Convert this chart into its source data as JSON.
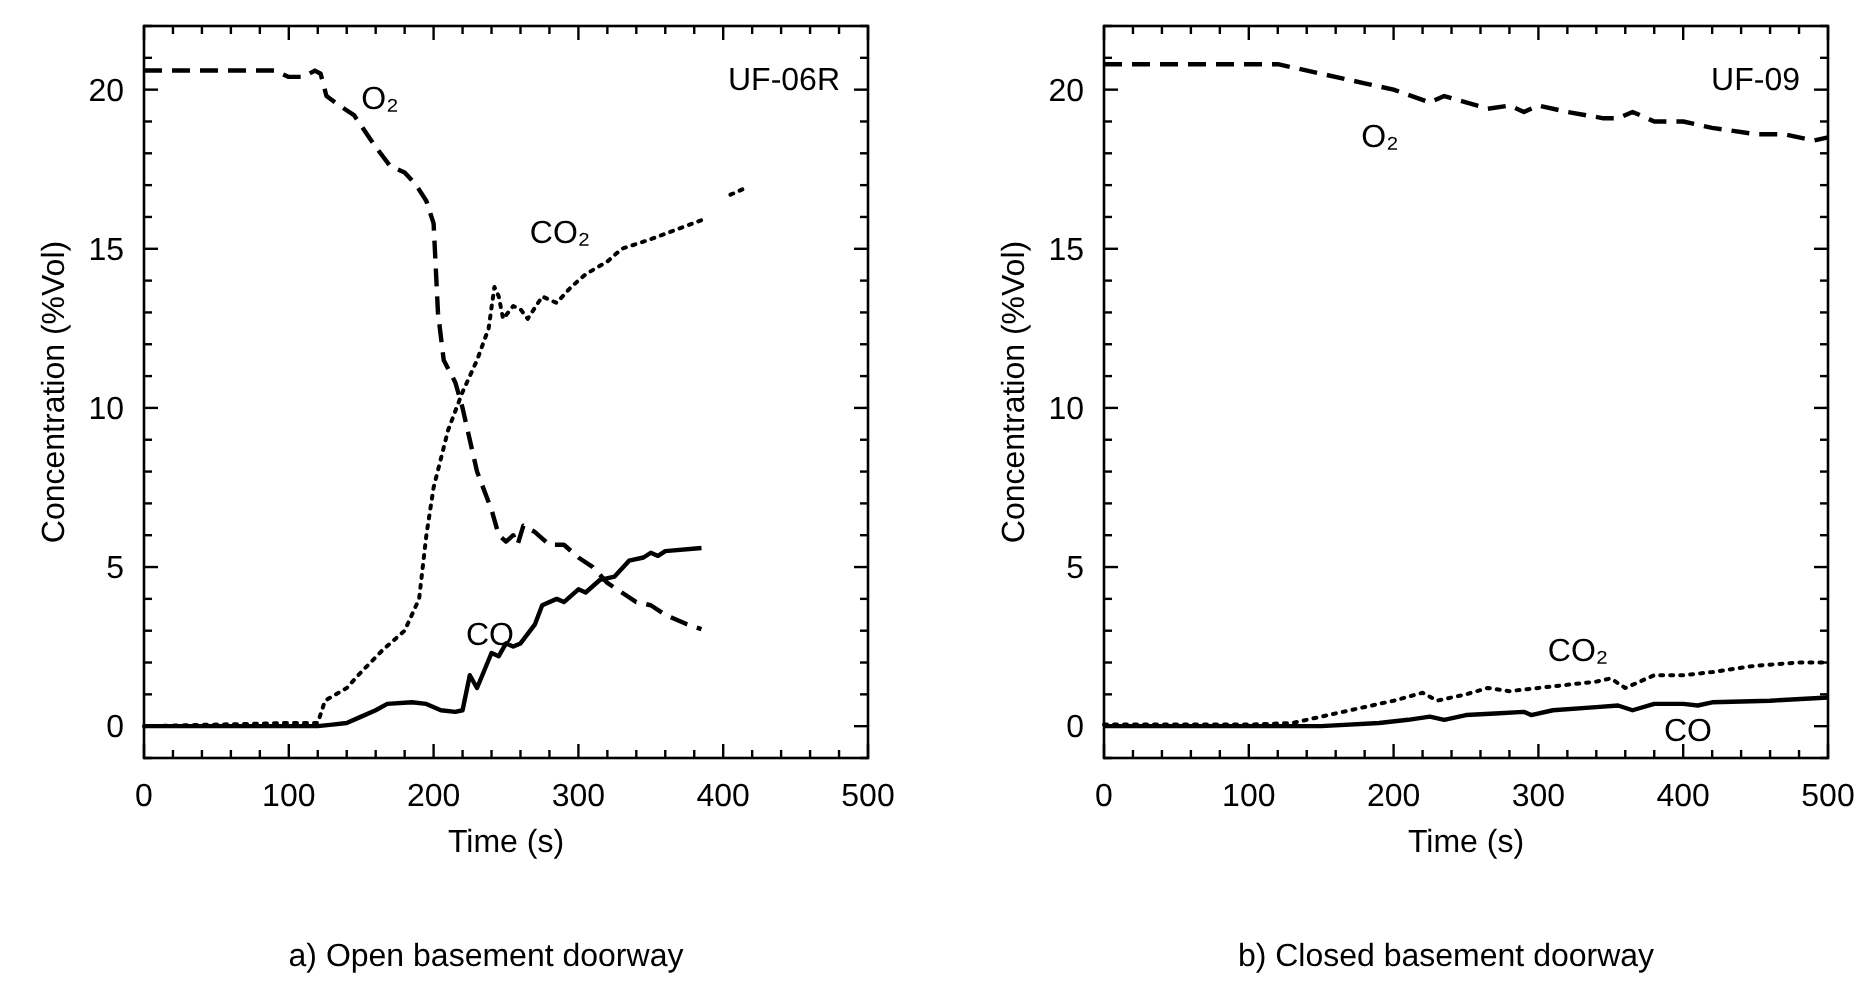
{
  "chart_data": [
    {
      "type": "line",
      "title": "a) Open basement doorway",
      "xlabel": "Time (s)",
      "ylabel": "Concentration (%Vol)",
      "xlim": [
        0,
        500
      ],
      "ylim": [
        -1,
        22
      ],
      "xticks": [
        0,
        {
          "value": 20,
          "label": null
        },
        {
          "value": 40,
          "label": null
        },
        {
          "value": 60,
          "label": null
        },
        {
          "value": 80,
          "label": null
        },
        100,
        {
          "value": 120,
          "label": null
        },
        {
          "value": 140,
          "label": null
        },
        {
          "value": 160,
          "label": null
        },
        {
          "value": 180,
          "label": null
        },
        200,
        {
          "value": 220,
          "label": null
        },
        {
          "value": 240,
          "label": null
        },
        {
          "value": 260,
          "label": null
        },
        {
          "value": 280,
          "label": null
        },
        300,
        {
          "value": 320,
          "label": null
        },
        {
          "value": 340,
          "label": null
        },
        {
          "value": 360,
          "label": null
        },
        {
          "value": 380,
          "label": null
        },
        400,
        {
          "value": 420,
          "label": null
        },
        {
          "value": 440,
          "label": null
        },
        {
          "value": 460,
          "label": null
        },
        {
          "value": 480,
          "label": null
        },
        500
      ],
      "yticks": [
        {
          "value": -1,
          "label": null
        },
        0,
        {
          "value": 1,
          "label": null
        },
        {
          "value": 2,
          "label": null
        },
        {
          "value": 3,
          "label": null
        },
        {
          "value": 4,
          "label": null
        },
        5,
        {
          "value": 6,
          "label": null
        },
        {
          "value": 7,
          "label": null
        },
        {
          "value": 8,
          "label": null
        },
        {
          "value": 9,
          "label": null
        },
        10,
        {
          "value": 11,
          "label": null
        },
        {
          "value": 12,
          "label": null
        },
        {
          "value": 13,
          "label": null
        },
        {
          "value": 14,
          "label": null
        },
        15,
        {
          "value": 16,
          "label": null
        },
        {
          "value": 17,
          "label": null
        },
        {
          "value": 18,
          "label": null
        },
        {
          "value": 19,
          "label": null
        },
        20,
        {
          "value": 21,
          "label": null
        },
        {
          "value": 22,
          "label": null
        }
      ],
      "grid": false,
      "legend": false,
      "series": [
        {
          "name": "O₂",
          "color": "#000000",
          "line_style": "dashed",
          "x": [
            0,
            90,
            100,
            110,
            118,
            122,
            126,
            135,
            145,
            160,
            170,
            180,
            188,
            195,
            200,
            203,
            207,
            215,
            220,
            230,
            240,
            245,
            250,
            255,
            258,
            262,
            270,
            280,
            290,
            300,
            310,
            320,
            330,
            340,
            350,
            360,
            375,
            385
          ],
          "values": [
            20.6,
            20.6,
            20.4,
            20.4,
            20.6,
            20.5,
            19.8,
            19.5,
            19.2,
            18.2,
            17.6,
            17.4,
            17.0,
            16.5,
            15.8,
            13,
            11.5,
            10.8,
            10,
            8,
            6.8,
            6.0,
            5.8,
            6.0,
            5.7,
            6.3,
            6.1,
            5.7,
            5.7,
            5.3,
            5.0,
            4.5,
            4.2,
            3.9,
            3.8,
            3.5,
            3.2,
            3.05
          ]
        },
        {
          "name": "CO₂",
          "color": "#000000",
          "line_style": "dotted",
          "x": [
            0,
            100,
            120,
            125,
            140,
            150,
            165,
            180,
            190,
            195,
            200,
            210,
            220,
            230,
            238,
            242,
            245,
            248,
            255,
            260,
            265,
            275,
            285,
            295,
            305,
            320,
            330,
            350,
            385,
            395,
            405,
            415
          ],
          "values": [
            0,
            0.1,
            0.1,
            0.8,
            1.2,
            1.7,
            2.4,
            3,
            4,
            6,
            7.5,
            9.3,
            10.5,
            11.5,
            12.5,
            13.8,
            13.5,
            12.8,
            13.2,
            13.1,
            12.8,
            13.5,
            13.3,
            13.8,
            14.2,
            14.6,
            15.0,
            15.3,
            15.9,
            null,
            16.7,
            16.9
          ]
        },
        {
          "name": "CO",
          "color": "#000000",
          "line_style": "solid",
          "x": [
            0,
            120,
            130,
            140,
            150,
            160,
            168,
            185,
            195,
            205,
            215,
            220,
            225,
            230,
            240,
            245,
            250,
            255,
            260,
            270,
            275,
            285,
            290,
            300,
            305,
            315,
            325,
            335,
            345,
            350,
            355,
            360,
            385
          ],
          "values": [
            0,
            0,
            0.05,
            0.1,
            0.3,
            0.5,
            0.7,
            0.75,
            0.7,
            0.5,
            0.45,
            0.5,
            1.6,
            1.2,
            2.3,
            2.2,
            2.6,
            2.5,
            2.6,
            3.2,
            3.8,
            4.0,
            3.9,
            4.3,
            4.2,
            4.6,
            4.7,
            5.2,
            5.3,
            5.45,
            5.35,
            5.5,
            5.6
          ]
        }
      ],
      "annotations": [
        "UF-06R"
      ]
    },
    {
      "type": "line",
      "title": "b) Closed basement doorway",
      "xlabel": "Time (s)",
      "ylabel": "Concentration (%Vol)",
      "xlim": [
        0,
        500
      ],
      "ylim": [
        -1,
        22
      ],
      "xticks": [
        0,
        {
          "value": 20,
          "label": null
        },
        {
          "value": 40,
          "label": null
        },
        {
          "value": 60,
          "label": null
        },
        {
          "value": 80,
          "label": null
        },
        100,
        {
          "value": 120,
          "label": null
        },
        {
          "value": 140,
          "label": null
        },
        {
          "value": 160,
          "label": null
        },
        {
          "value": 180,
          "label": null
        },
        200,
        {
          "value": 220,
          "label": null
        },
        {
          "value": 240,
          "label": null
        },
        {
          "value": 260,
          "label": null
        },
        {
          "value": 280,
          "label": null
        },
        300,
        {
          "value": 320,
          "label": null
        },
        {
          "value": 340,
          "label": null
        },
        {
          "value": 360,
          "label": null
        },
        {
          "value": 380,
          "label": null
        },
        400,
        {
          "value": 420,
          "label": null
        },
        {
          "value": 440,
          "label": null
        },
        {
          "value": 460,
          "label": null
        },
        {
          "value": 480,
          "label": null
        },
        500
      ],
      "yticks": [
        {
          "value": -1,
          "label": null
        },
        0,
        {
          "value": 1,
          "label": null
        },
        {
          "value": 2,
          "label": null
        },
        {
          "value": 3,
          "label": null
        },
        {
          "value": 4,
          "label": null
        },
        5,
        {
          "value": 6,
          "label": null
        },
        {
          "value": 7,
          "label": null
        },
        {
          "value": 8,
          "label": null
        },
        {
          "value": 9,
          "label": null
        },
        10,
        {
          "value": 11,
          "label": null
        },
        {
          "value": 12,
          "label": null
        },
        {
          "value": 13,
          "label": null
        },
        {
          "value": 14,
          "label": null
        },
        15,
        {
          "value": 16,
          "label": null
        },
        {
          "value": 17,
          "label": null
        },
        {
          "value": 18,
          "label": null
        },
        {
          "value": 19,
          "label": null
        },
        20,
        {
          "value": 21,
          "label": null
        },
        {
          "value": 22,
          "label": null
        }
      ],
      "grid": false,
      "legend": false,
      "series": [
        {
          "name": "O₂",
          "color": "#000000",
          "line_style": "dashed",
          "x": [
            0,
            120,
            150,
            180,
            200,
            225,
            235,
            250,
            265,
            280,
            290,
            300,
            320,
            345,
            355,
            365,
            380,
            400,
            420,
            450,
            470,
            490,
            500
          ],
          "values": [
            20.8,
            20.8,
            20.5,
            20.2,
            20,
            19.6,
            19.8,
            19.6,
            19.4,
            19.5,
            19.3,
            19.5,
            19.3,
            19.1,
            19.1,
            19.3,
            19,
            19,
            18.8,
            18.6,
            18.6,
            18.4,
            18.5
          ]
        },
        {
          "name": "CO₂",
          "color": "#000000",
          "line_style": "dotted",
          "x": [
            0,
            100,
            130,
            150,
            180,
            200,
            220,
            230,
            250,
            265,
            280,
            300,
            320,
            340,
            350,
            360,
            370,
            380,
            400,
            420,
            450,
            480,
            500
          ],
          "values": [
            0.05,
            0.05,
            0.1,
            0.3,
            0.6,
            0.8,
            1.05,
            0.8,
            1.0,
            1.2,
            1.1,
            1.2,
            1.3,
            1.4,
            1.5,
            1.2,
            1.4,
            1.6,
            1.6,
            1.7,
            1.9,
            2.0,
            2.0
          ]
        },
        {
          "name": "CO",
          "color": "#000000",
          "line_style": "solid",
          "x": [
            0,
            150,
            190,
            210,
            225,
            235,
            250,
            270,
            290,
            295,
            310,
            340,
            355,
            365,
            380,
            400,
            410,
            420,
            460,
            500
          ],
          "values": [
            0,
            0,
            0.1,
            0.2,
            0.3,
            0.2,
            0.35,
            0.4,
            0.45,
            0.35,
            0.5,
            0.6,
            0.65,
            0.5,
            0.7,
            0.7,
            0.65,
            0.75,
            0.8,
            0.9
          ]
        }
      ],
      "annotations": [
        "UF-09"
      ]
    }
  ]
}
